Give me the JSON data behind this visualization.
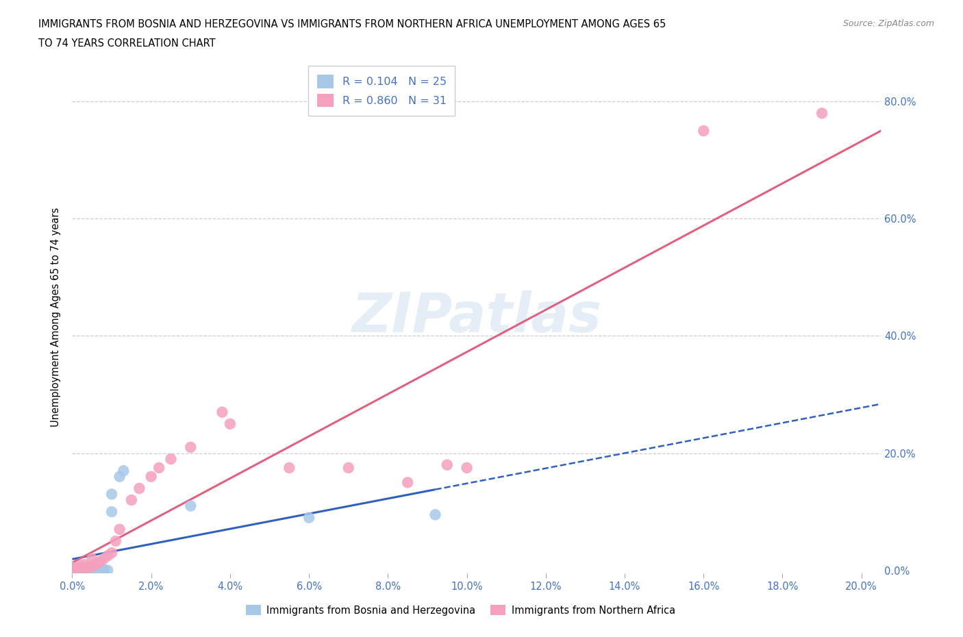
{
  "title_line1": "IMMIGRANTS FROM BOSNIA AND HERZEGOVINA VS IMMIGRANTS FROM NORTHERN AFRICA UNEMPLOYMENT AMONG AGES 65",
  "title_line2": "TO 74 YEARS CORRELATION CHART",
  "source": "Source: ZipAtlas.com",
  "ylabel": "Unemployment Among Ages 65 to 74 years",
  "xlim": [
    0.0,
    0.205
  ],
  "ylim": [
    -0.005,
    0.87
  ],
  "bosnia_color": "#a8c8e8",
  "northern_africa_color": "#f5a0bc",
  "bosnia_line_color": "#3060c0",
  "northern_africa_line_color": "#e06080",
  "tick_color": "#4472c4",
  "bosnia_R": 0.104,
  "bosnia_N": 25,
  "northern_africa_R": 0.86,
  "northern_africa_N": 31,
  "bosnia_x": [
    0.0,
    0.001,
    0.001,
    0.002,
    0.002,
    0.003,
    0.003,
    0.004,
    0.004,
    0.005,
    0.005,
    0.006,
    0.006,
    0.007,
    0.007,
    0.008,
    0.008,
    0.009,
    0.01,
    0.01,
    0.012,
    0.013,
    0.03,
    0.06,
    0.092
  ],
  "bosnia_y": [
    0.005,
    0.0,
    0.003,
    0.0,
    0.002,
    0.001,
    0.0,
    0.002,
    0.001,
    0.0,
    0.003,
    0.001,
    0.0,
    0.0,
    0.001,
    0.0,
    0.002,
    0.0,
    0.1,
    0.13,
    0.16,
    0.17,
    0.11,
    0.09,
    0.095
  ],
  "na_x": [
    0.0,
    0.001,
    0.001,
    0.002,
    0.003,
    0.003,
    0.004,
    0.005,
    0.005,
    0.006,
    0.007,
    0.008,
    0.009,
    0.01,
    0.011,
    0.012,
    0.015,
    0.017,
    0.02,
    0.022,
    0.025,
    0.03,
    0.038,
    0.04,
    0.055,
    0.07,
    0.085,
    0.095,
    0.1,
    0.16,
    0.19
  ],
  "na_y": [
    0.005,
    0.003,
    0.0,
    0.008,
    0.01,
    0.0,
    0.005,
    0.007,
    0.02,
    0.01,
    0.015,
    0.02,
    0.025,
    0.03,
    0.05,
    0.07,
    0.12,
    0.14,
    0.16,
    0.175,
    0.19,
    0.21,
    0.27,
    0.25,
    0.175,
    0.175,
    0.15,
    0.18,
    0.175,
    0.75,
    0.78
  ]
}
